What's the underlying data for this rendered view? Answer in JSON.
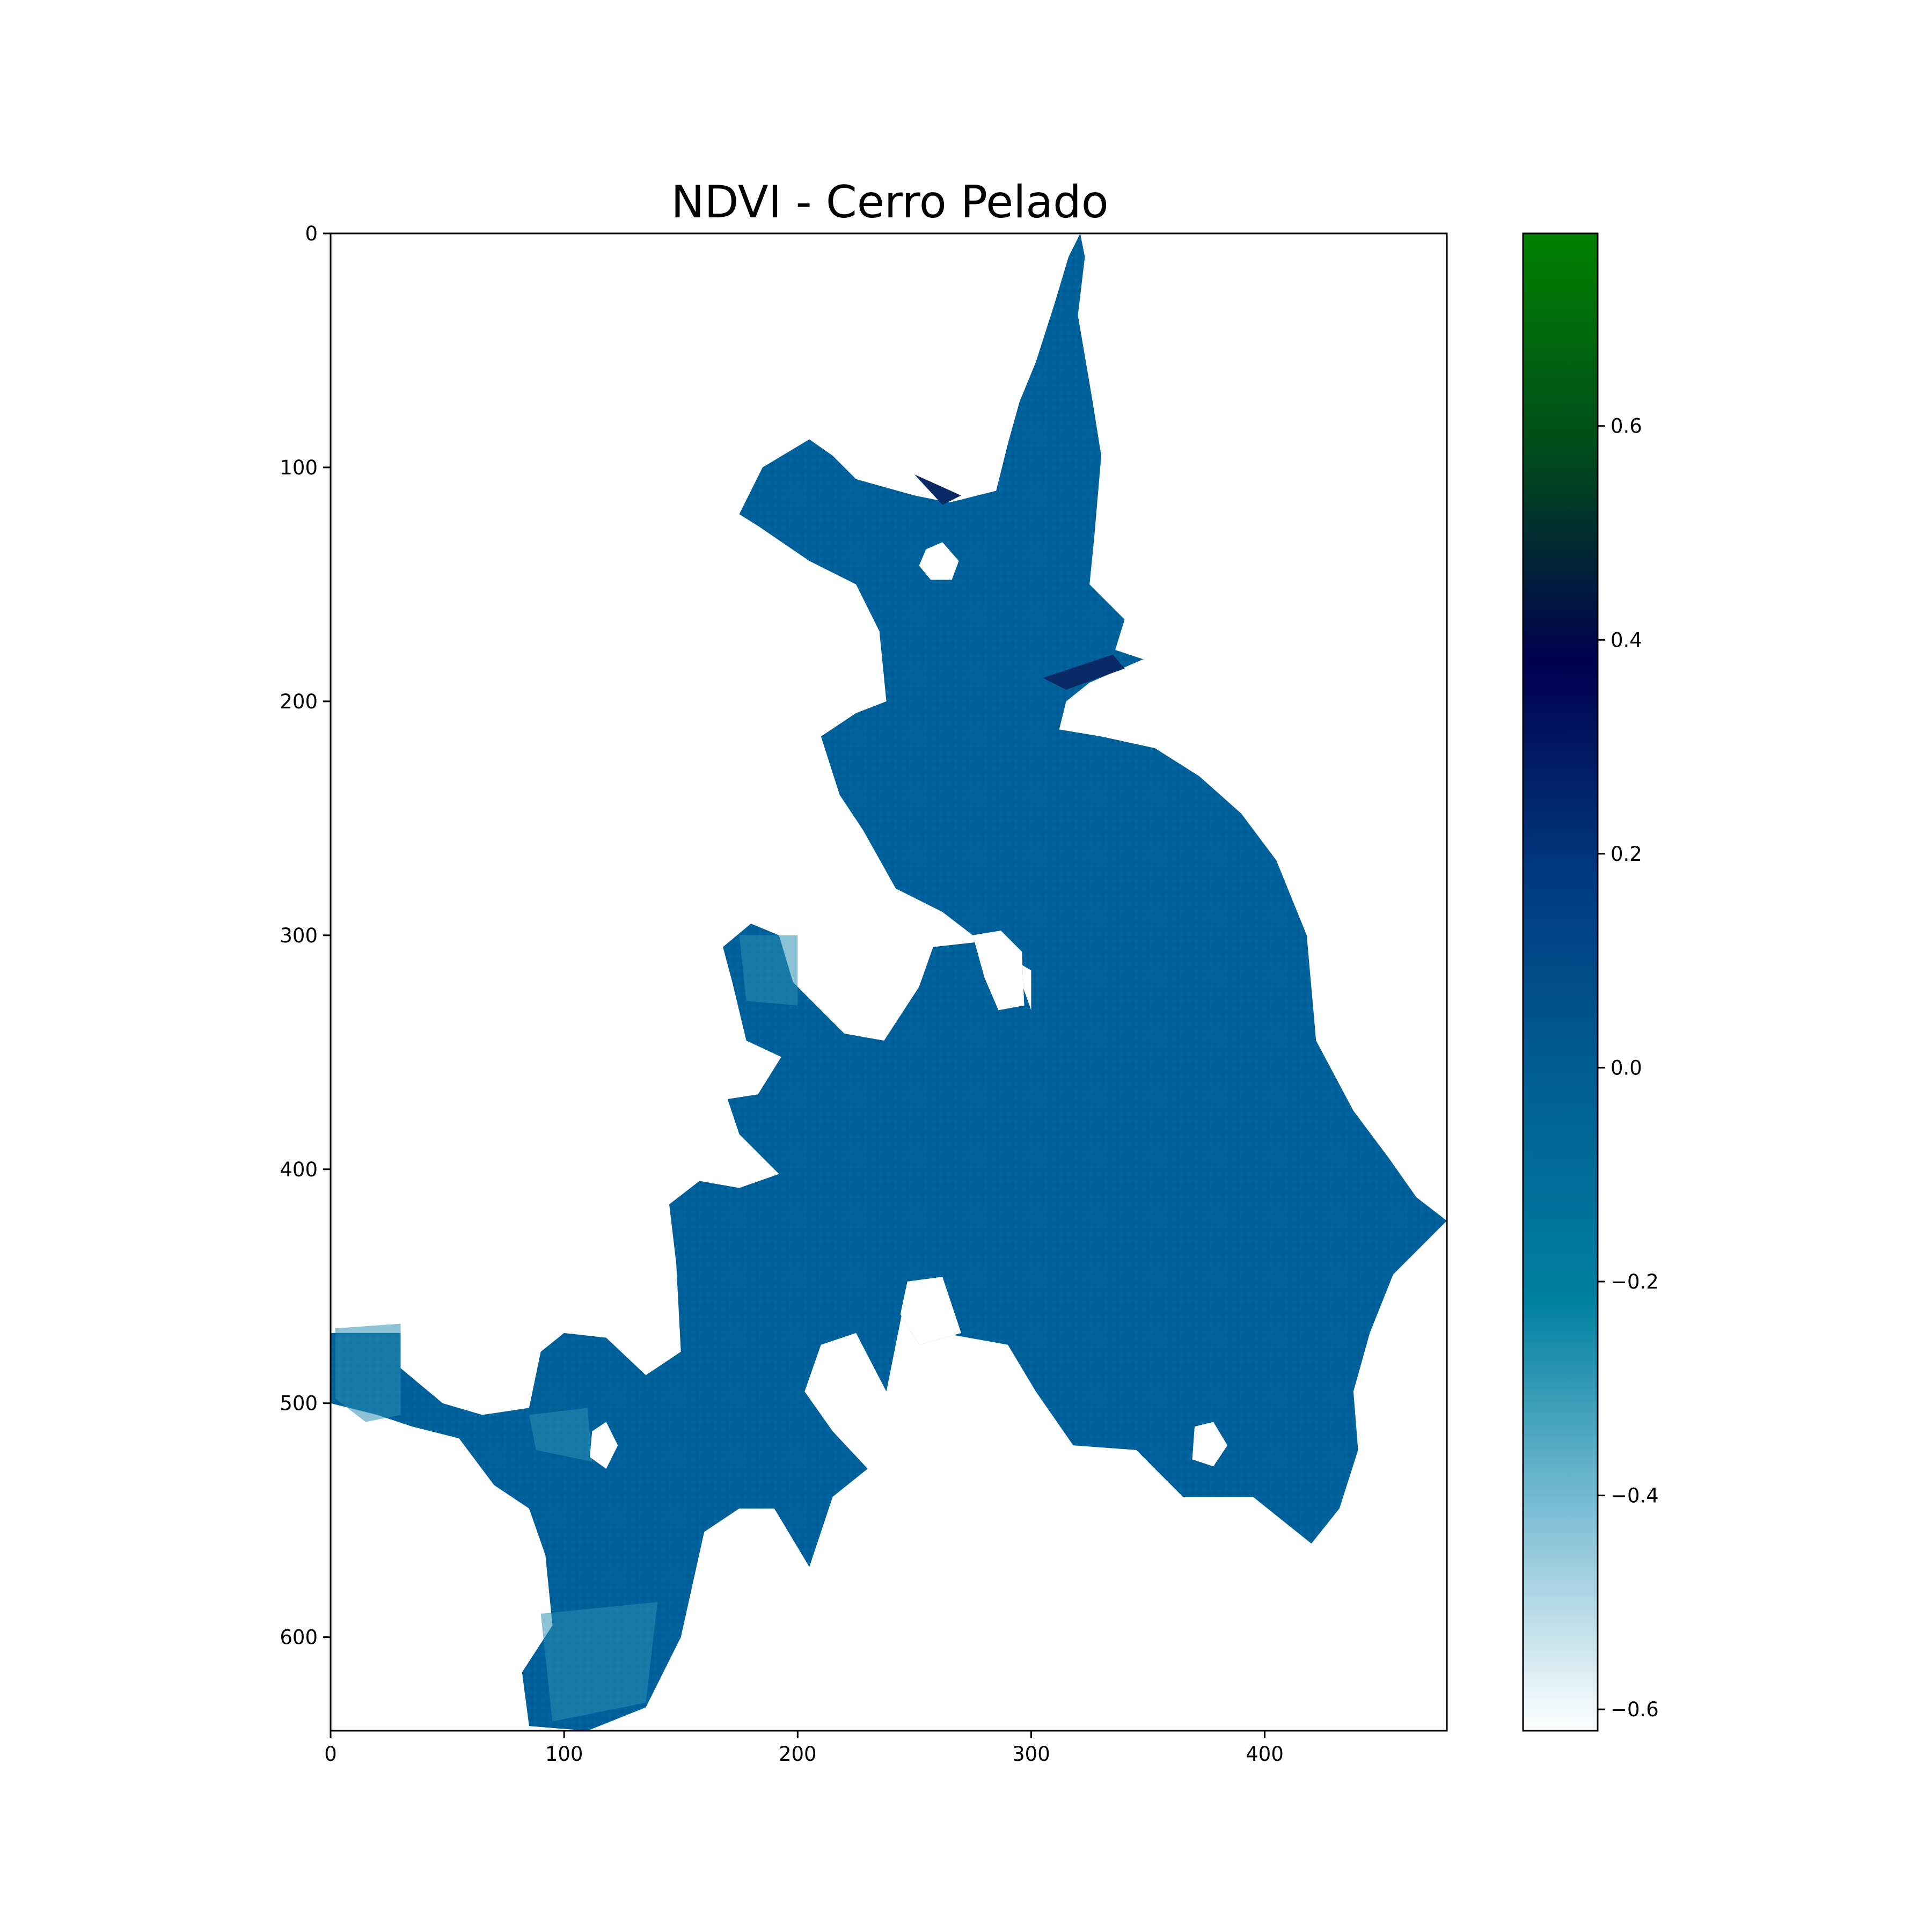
{
  "chart_data": {
    "type": "heatmap",
    "title": "NDVI - Cerro Pelado",
    "xlabel": "",
    "ylabel": "",
    "x_ticks": [
      0,
      100,
      200,
      300,
      400
    ],
    "y_ticks": [
      0,
      100,
      200,
      300,
      400,
      500,
      600
    ],
    "xlim": [
      0,
      478
    ],
    "ylim": [
      640,
      0
    ],
    "colorbar": {
      "vmin": -0.62,
      "vmax": 0.78,
      "ticks": [
        0.6,
        0.4,
        0.2,
        0.0,
        -0.2,
        -0.4,
        -0.6
      ],
      "tick_labels": [
        "0.6",
        "0.4",
        "0.2",
        "0.0",
        "−0.2",
        "−0.4",
        "−0.6"
      ],
      "colormap": [
        "#ffffff",
        "#7fbfd5",
        "#0080a0",
        "#005f96",
        "#003a80",
        "#000050",
        "#004d1a",
        "#008000"
      ]
    },
    "dominant_value": -0.05,
    "dominant_color": "#00609a",
    "bright_patch_color": "#2b8fb3",
    "dark_patch_color": "#0a2a66",
    "grid": false,
    "region_outline": [
      [
        321,
        0
      ],
      [
        323,
        10
      ],
      [
        320,
        35
      ],
      [
        326,
        70
      ],
      [
        330,
        95
      ],
      [
        327,
        130
      ],
      [
        325,
        150
      ],
      [
        340,
        165
      ],
      [
        336,
        178
      ],
      [
        348,
        182
      ],
      [
        325,
        192
      ],
      [
        315,
        200
      ],
      [
        312,
        212
      ],
      [
        330,
        215
      ],
      [
        353,
        220
      ],
      [
        372,
        232
      ],
      [
        390,
        248
      ],
      [
        405,
        268
      ],
      [
        418,
        300
      ],
      [
        422,
        345
      ],
      [
        438,
        375
      ],
      [
        453,
        395
      ],
      [
        465,
        412
      ],
      [
        478,
        422
      ],
      [
        455,
        445
      ],
      [
        445,
        470
      ],
      [
        438,
        495
      ],
      [
        440,
        520
      ],
      [
        432,
        545
      ],
      [
        420,
        560
      ],
      [
        395,
        540
      ],
      [
        365,
        540
      ],
      [
        345,
        520
      ],
      [
        318,
        518
      ],
      [
        302,
        495
      ],
      [
        290,
        475
      ],
      [
        262,
        470
      ],
      [
        258,
        452
      ],
      [
        248,
        448
      ],
      [
        245,
        460
      ],
      [
        238,
        495
      ],
      [
        225,
        470
      ],
      [
        210,
        475
      ],
      [
        203,
        495
      ],
      [
        215,
        512
      ],
      [
        230,
        528
      ],
      [
        215,
        540
      ],
      [
        205,
        570
      ],
      [
        190,
        545
      ],
      [
        175,
        545
      ],
      [
        160,
        555
      ],
      [
        150,
        600
      ],
      [
        135,
        630
      ],
      [
        110,
        640
      ],
      [
        85,
        638
      ],
      [
        82,
        615
      ],
      [
        95,
        595
      ],
      [
        92,
        565
      ],
      [
        85,
        545
      ],
      [
        70,
        535
      ],
      [
        55,
        515
      ],
      [
        35,
        510
      ],
      [
        20,
        505
      ],
      [
        0,
        500
      ],
      [
        0,
        470
      ],
      [
        15,
        470
      ],
      [
        30,
        470
      ],
      [
        30,
        485
      ],
      [
        48,
        500
      ],
      [
        65,
        505
      ],
      [
        85,
        502
      ],
      [
        90,
        478
      ],
      [
        100,
        470
      ],
      [
        118,
        472
      ],
      [
        135,
        488
      ],
      [
        150,
        478
      ],
      [
        148,
        440
      ],
      [
        145,
        415
      ],
      [
        158,
        405
      ],
      [
        175,
        408
      ],
      [
        192,
        402
      ],
      [
        175,
        385
      ],
      [
        170,
        370
      ],
      [
        183,
        368
      ],
      [
        193,
        352
      ],
      [
        178,
        345
      ],
      [
        172,
        320
      ],
      [
        168,
        305
      ],
      [
        180,
        295
      ],
      [
        192,
        300
      ],
      [
        198,
        320
      ],
      [
        220,
        342
      ],
      [
        237,
        345
      ],
      [
        252,
        322
      ],
      [
        258,
        305
      ],
      [
        285,
        302
      ],
      [
        295,
        318
      ],
      [
        300,
        332
      ],
      [
        300,
        315
      ],
      [
        275,
        300
      ],
      [
        262,
        290
      ],
      [
        242,
        280
      ],
      [
        228,
        255
      ],
      [
        218,
        240
      ],
      [
        210,
        215
      ],
      [
        225,
        205
      ],
      [
        238,
        200
      ],
      [
        235,
        170
      ],
      [
        225,
        150
      ],
      [
        205,
        140
      ],
      [
        183,
        125
      ],
      [
        175,
        120
      ],
      [
        185,
        100
      ],
      [
        205,
        88
      ],
      [
        215,
        95
      ],
      [
        225,
        105
      ],
      [
        250,
        112
      ],
      [
        265,
        115
      ],
      [
        285,
        110
      ],
      [
        290,
        90
      ],
      [
        295,
        72
      ],
      [
        302,
        55
      ],
      [
        310,
        30
      ],
      [
        316,
        10
      ]
    ],
    "holes": [
      [
        [
          255,
          135
        ],
        [
          262,
          132
        ],
        [
          269,
          140
        ],
        [
          266,
          148
        ],
        [
          257,
          148
        ],
        [
          252,
          142
        ]
      ],
      [
        [
          275,
          300
        ],
        [
          287,
          298
        ],
        [
          296,
          307
        ],
        [
          297,
          330
        ],
        [
          286,
          332
        ],
        [
          280,
          318
        ]
      ],
      [
        [
          247,
          448
        ],
        [
          262,
          446
        ],
        [
          270,
          470
        ],
        [
          252,
          475
        ],
        [
          244,
          462
        ]
      ],
      [
        [
          370,
          510
        ],
        [
          378,
          508
        ],
        [
          384,
          518
        ],
        [
          378,
          527
        ],
        [
          369,
          524
        ]
      ],
      [
        [
          112,
          512
        ],
        [
          118,
          508
        ],
        [
          123,
          518
        ],
        [
          118,
          528
        ],
        [
          111,
          523
        ]
      ]
    ],
    "bright_patches": [
      [
        [
          2,
          468
        ],
        [
          30,
          466
        ],
        [
          30,
          505
        ],
        [
          15,
          508
        ],
        [
          2,
          498
        ]
      ],
      [
        [
          90,
          590
        ],
        [
          140,
          585
        ],
        [
          135,
          628
        ],
        [
          95,
          636
        ]
      ],
      [
        [
          85,
          505
        ],
        [
          110,
          502
        ],
        [
          112,
          525
        ],
        [
          88,
          520
        ]
      ],
      [
        [
          175,
          300
        ],
        [
          200,
          300
        ],
        [
          200,
          330
        ],
        [
          178,
          328
        ]
      ]
    ],
    "dark_patches": [
      [
        [
          305,
          190
        ],
        [
          335,
          180
        ],
        [
          340,
          186
        ],
        [
          315,
          195
        ]
      ],
      [
        [
          250,
          103
        ],
        [
          270,
          112
        ],
        [
          262,
          116
        ]
      ]
    ]
  }
}
